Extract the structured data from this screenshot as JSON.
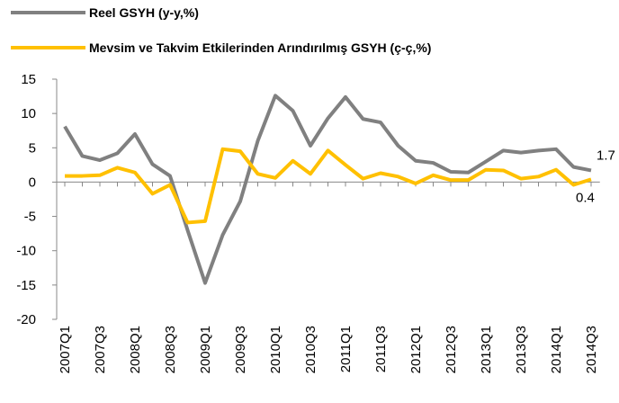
{
  "chart_data": {
    "type": "line",
    "categories": [
      "2007Q1",
      null,
      "2007Q3",
      null,
      "2008Q1",
      null,
      "2008Q3",
      null,
      "2009Q1",
      null,
      "2009Q3",
      null,
      "2010Q1",
      null,
      "2010Q3",
      null,
      "2011Q1",
      null,
      "2011Q3",
      null,
      "2012Q1",
      null,
      "2012Q3",
      null,
      "2013Q1",
      null,
      "2013Q3",
      null,
      "2014Q1",
      null,
      "2014Q3"
    ],
    "series": [
      {
        "name": "Reel GSYH (y-y,%)",
        "color": "#808080",
        "values": [
          8.1,
          3.8,
          3.2,
          4.2,
          7.0,
          2.6,
          0.9,
          -7.0,
          -14.7,
          -7.7,
          -2.8,
          6.0,
          12.6,
          10.4,
          5.3,
          9.3,
          12.4,
          9.2,
          8.7,
          5.3,
          3.1,
          2.8,
          1.5,
          1.4,
          3.0,
          4.6,
          4.3,
          4.6,
          4.8,
          2.2,
          1.7
        ]
      },
      {
        "name": "Mevsim ve Takvim Etkilerinden Arındırılmış GSYH (ç-ç,%)",
        "color": "#FFC000",
        "values": [
          0.9,
          0.9,
          1.0,
          2.1,
          1.4,
          -1.7,
          -0.4,
          -5.9,
          -5.7,
          4.8,
          4.5,
          1.2,
          0.6,
          3.1,
          1.2,
          4.6,
          2.5,
          0.5,
          1.3,
          0.8,
          -0.2,
          1.0,
          0.3,
          0.3,
          1.8,
          1.7,
          0.5,
          0.8,
          1.8,
          -0.4,
          0.4
        ]
      }
    ],
    "ylim": [
      -20,
      15
    ],
    "yticks": [
      15,
      10,
      5,
      0,
      -5,
      -10,
      -15,
      -20
    ],
    "legend": "top-left"
  }
}
